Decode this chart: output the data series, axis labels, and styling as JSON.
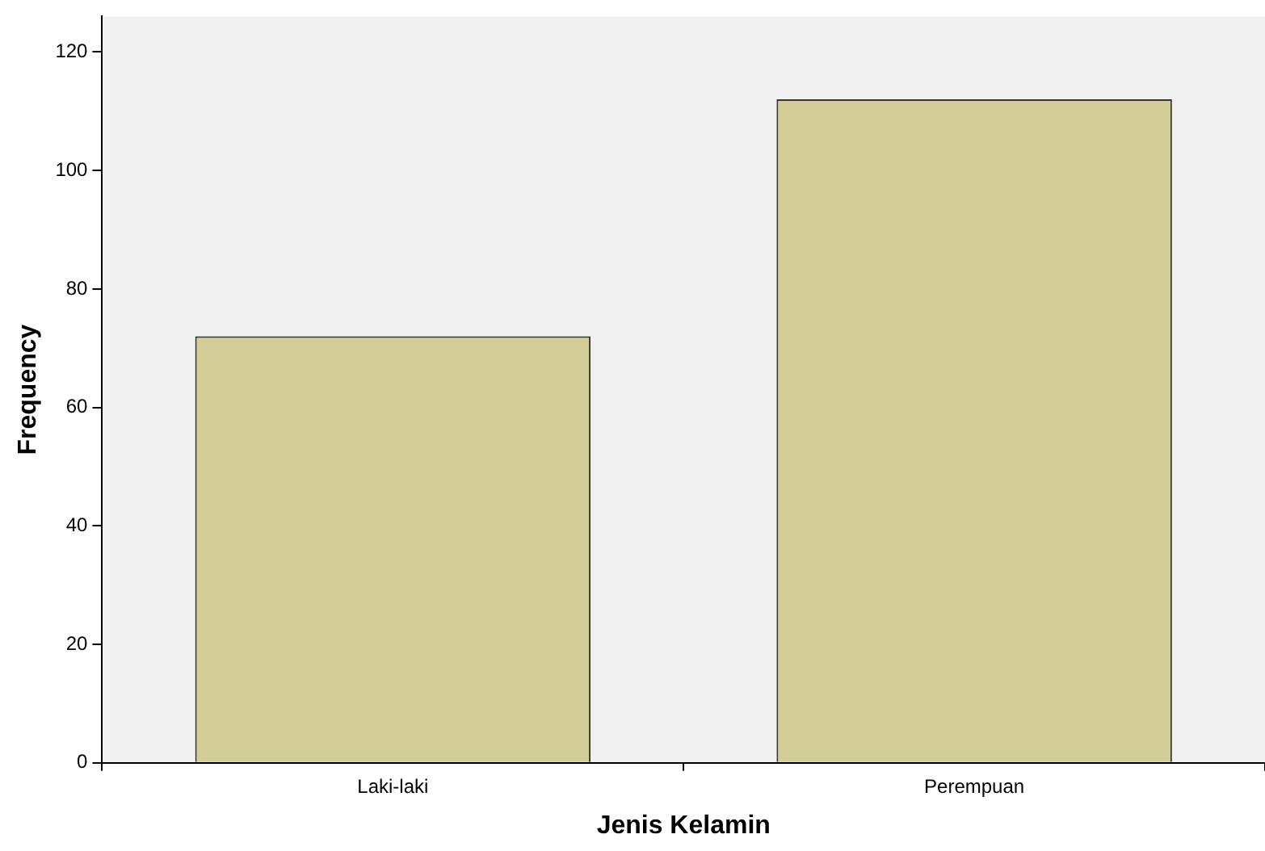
{
  "chart_data": {
    "type": "bar",
    "xlabel": "Jenis Kelamin",
    "ylabel": "Frequency",
    "categories": [
      "Laki-laki",
      "Perempuan"
    ],
    "values": [
      72,
      112
    ],
    "color": "#d3ce97",
    "ylim": [
      0,
      126
    ],
    "yticks": [
      0,
      20,
      40,
      60,
      80,
      100,
      120
    ],
    "grid": false,
    "legend": false
  }
}
